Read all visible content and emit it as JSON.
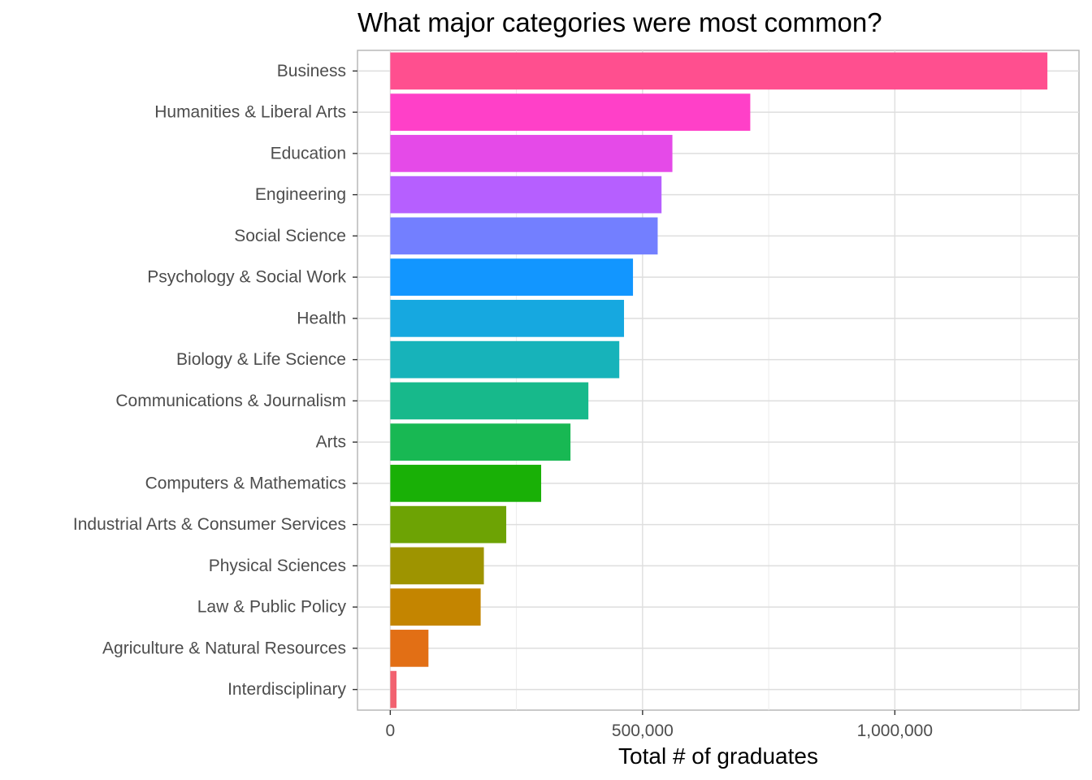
{
  "chart_data": {
    "type": "bar",
    "orientation": "horizontal",
    "title": "What major categories were most common?",
    "xlabel": "Total # of graduates",
    "ylabel": "",
    "xlim": [
      -65000,
      1365000
    ],
    "xticks": [
      0,
      500000,
      1000000
    ],
    "xtick_labels": [
      "0",
      "500,000",
      "1,000,000"
    ],
    "x_minor_ticks": [
      250000,
      750000,
      1250000
    ],
    "grid": true,
    "categories": [
      "Business",
      "Humanities & Liberal Arts",
      "Education",
      "Engineering",
      "Social Science",
      "Psychology & Social Work",
      "Health",
      "Biology & Life Science",
      "Communications & Journalism",
      "Arts",
      "Computers & Mathematics",
      "Industrial Arts & Consumer Services",
      "Physical Sciences",
      "Law & Public Policy",
      "Agriculture & Natural Resources",
      "Interdisciplinary"
    ],
    "values": [
      1302376,
      713468,
      559129,
      537583,
      529966,
      481007,
      463230,
      453862,
      392601,
      357130,
      299008,
      229792,
      185479,
      179107,
      75620,
      12296
    ],
    "colors": [
      "#FF4F8F",
      "#FF40C8",
      "#E54AE8",
      "#B65FFF",
      "#737FFF",
      "#1296FF",
      "#16A8E0",
      "#17B3BA",
      "#17B98B",
      "#18B853",
      "#19B006",
      "#6DA304",
      "#9E9400",
      "#C48500",
      "#E26F15",
      "#F26270"
    ]
  }
}
